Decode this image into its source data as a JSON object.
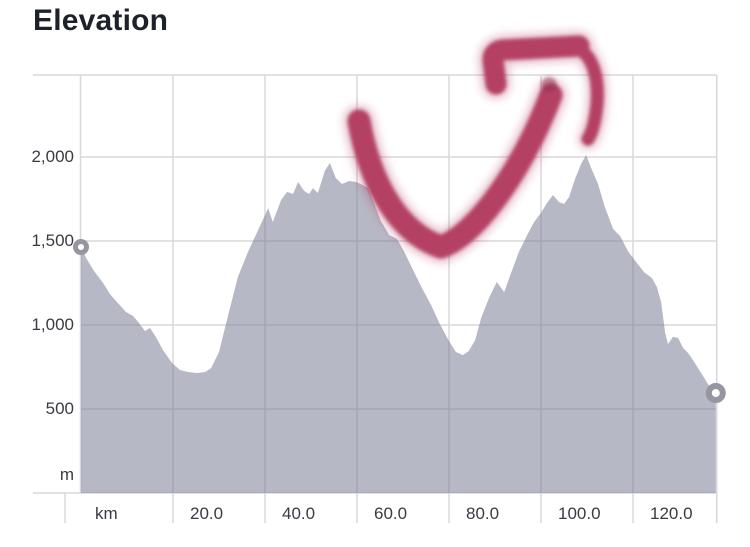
{
  "chart_data": {
    "type": "area",
    "title": "Elevation",
    "x_unit_label": "km",
    "y_unit_label": "m",
    "x_ticks": [
      20,
      40,
      60,
      80,
      100,
      120
    ],
    "x_tick_labels": [
      "20.0",
      "40.0",
      "60.0",
      "80.0",
      "100.0",
      "120.0"
    ],
    "y_ticks": [
      500,
      1000,
      1500,
      2000
    ],
    "y_tick_labels": [
      "500",
      "1,000",
      "1,500",
      "2,000"
    ],
    "xlim": [
      0,
      138.2
    ],
    "ylim": [
      0,
      2490
    ],
    "grid": true,
    "legend": "none",
    "area_fill": "rgba(124,126,150,0.55)",
    "gridline_color": "#d8d8dc",
    "marker_ring_color": "#9696a2",
    "points": [
      [
        0.0,
        1464
      ],
      [
        1.1,
        1399
      ],
      [
        3.0,
        1315
      ],
      [
        4.8,
        1250
      ],
      [
        6.3,
        1184
      ],
      [
        8.0,
        1131
      ],
      [
        9.8,
        1077
      ],
      [
        11.3,
        1054
      ],
      [
        12.6,
        1012
      ],
      [
        13.9,
        964
      ],
      [
        15.0,
        982
      ],
      [
        16.3,
        928
      ],
      [
        17.8,
        851
      ],
      [
        19.8,
        774
      ],
      [
        21.5,
        732
      ],
      [
        23.3,
        720
      ],
      [
        25.2,
        714
      ],
      [
        27.0,
        720
      ],
      [
        28.3,
        744
      ],
      [
        30.0,
        839
      ],
      [
        32.0,
        1060
      ],
      [
        34.1,
        1286
      ],
      [
        36.3,
        1435
      ],
      [
        38.7,
        1577
      ],
      [
        40.7,
        1696
      ],
      [
        41.7,
        1613
      ],
      [
        43.5,
        1744
      ],
      [
        44.8,
        1792
      ],
      [
        46.1,
        1780
      ],
      [
        47.2,
        1851
      ],
      [
        48.5,
        1798
      ],
      [
        49.6,
        1780
      ],
      [
        50.4,
        1815
      ],
      [
        51.5,
        1786
      ],
      [
        53.0,
        1917
      ],
      [
        54.1,
        1964
      ],
      [
        55.4,
        1875
      ],
      [
        56.7,
        1839
      ],
      [
        58.3,
        1857
      ],
      [
        59.8,
        1851
      ],
      [
        61.3,
        1833
      ],
      [
        62.4,
        1815
      ],
      [
        63.7,
        1726
      ],
      [
        65.2,
        1619
      ],
      [
        67.0,
        1536
      ],
      [
        68.7,
        1512
      ],
      [
        70.2,
        1440
      ],
      [
        72.2,
        1327
      ],
      [
        74.1,
        1220
      ],
      [
        76.1,
        1119
      ],
      [
        78.0,
        1006
      ],
      [
        80.0,
        905
      ],
      [
        81.5,
        839
      ],
      [
        83.0,
        821
      ],
      [
        84.3,
        845
      ],
      [
        85.7,
        911
      ],
      [
        87.0,
        1042
      ],
      [
        88.7,
        1161
      ],
      [
        90.4,
        1256
      ],
      [
        92.0,
        1196
      ],
      [
        93.5,
        1310
      ],
      [
        95.2,
        1435
      ],
      [
        97.0,
        1536
      ],
      [
        98.5,
        1613
      ],
      [
        100.0,
        1667
      ],
      [
        101.3,
        1726
      ],
      [
        102.6,
        1774
      ],
      [
        103.9,
        1732
      ],
      [
        105.0,
        1720
      ],
      [
        106.1,
        1762
      ],
      [
        107.4,
        1869
      ],
      [
        108.7,
        1958
      ],
      [
        109.8,
        2012
      ],
      [
        110.9,
        1935
      ],
      [
        112.4,
        1839
      ],
      [
        113.9,
        1702
      ],
      [
        115.7,
        1571
      ],
      [
        117.2,
        1530
      ],
      [
        118.9,
        1440
      ],
      [
        120.7,
        1375
      ],
      [
        122.4,
        1315
      ],
      [
        124.1,
        1280
      ],
      [
        125.2,
        1226
      ],
      [
        126.1,
        1137
      ],
      [
        127.0,
        952
      ],
      [
        127.6,
        887
      ],
      [
        128.7,
        929
      ],
      [
        129.8,
        923
      ],
      [
        130.9,
        863
      ],
      [
        132.0,
        833
      ],
      [
        133.3,
        780
      ],
      [
        134.8,
        714
      ],
      [
        136.3,
        649
      ],
      [
        137.6,
        607
      ],
      [
        138.0,
        595
      ]
    ],
    "start_marker": {
      "km": 0.0,
      "m": 1464
    },
    "end_marker": {
      "km": 138.0,
      "m": 595
    }
  },
  "annotation": {
    "type": "hand-drawn-arrow",
    "meaning": "elevation-trend-up-right",
    "color": "#b23a5f",
    "shadow_color": "#8e2b49"
  }
}
